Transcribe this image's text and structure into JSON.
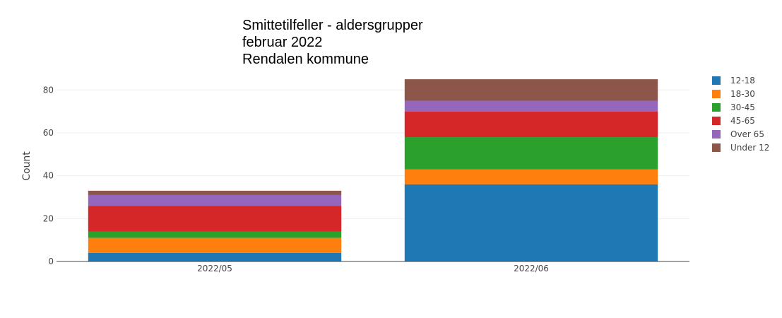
{
  "chart_data": {
    "type": "bar",
    "stacked": true,
    "title_lines": [
      "Smittetilfeller - aldersgrupper",
      "februar 2022",
      "Rendalen kommune"
    ],
    "xlabel": "",
    "ylabel": "Count",
    "categories": [
      "2022/05",
      "2022/06"
    ],
    "ylim": [
      0,
      89
    ],
    "yticks": [
      0,
      20,
      40,
      60,
      80
    ],
    "grid": true,
    "legend_position": "right",
    "series": [
      {
        "name": "12-18",
        "values": [
          4,
          36
        ],
        "color": "#1f77b4"
      },
      {
        "name": "18-30",
        "values": [
          7,
          7
        ],
        "color": "#ff7f0e"
      },
      {
        "name": "30-45",
        "values": [
          3,
          15
        ],
        "color": "#2ca02c"
      },
      {
        "name": "45-65",
        "values": [
          12,
          12
        ],
        "color": "#d62728"
      },
      {
        "name": "Over 65",
        "values": [
          5,
          5
        ],
        "color": "#9467bd"
      },
      {
        "name": "Under 12",
        "values": [
          2,
          10
        ],
        "color": "#8c564b"
      }
    ]
  }
}
